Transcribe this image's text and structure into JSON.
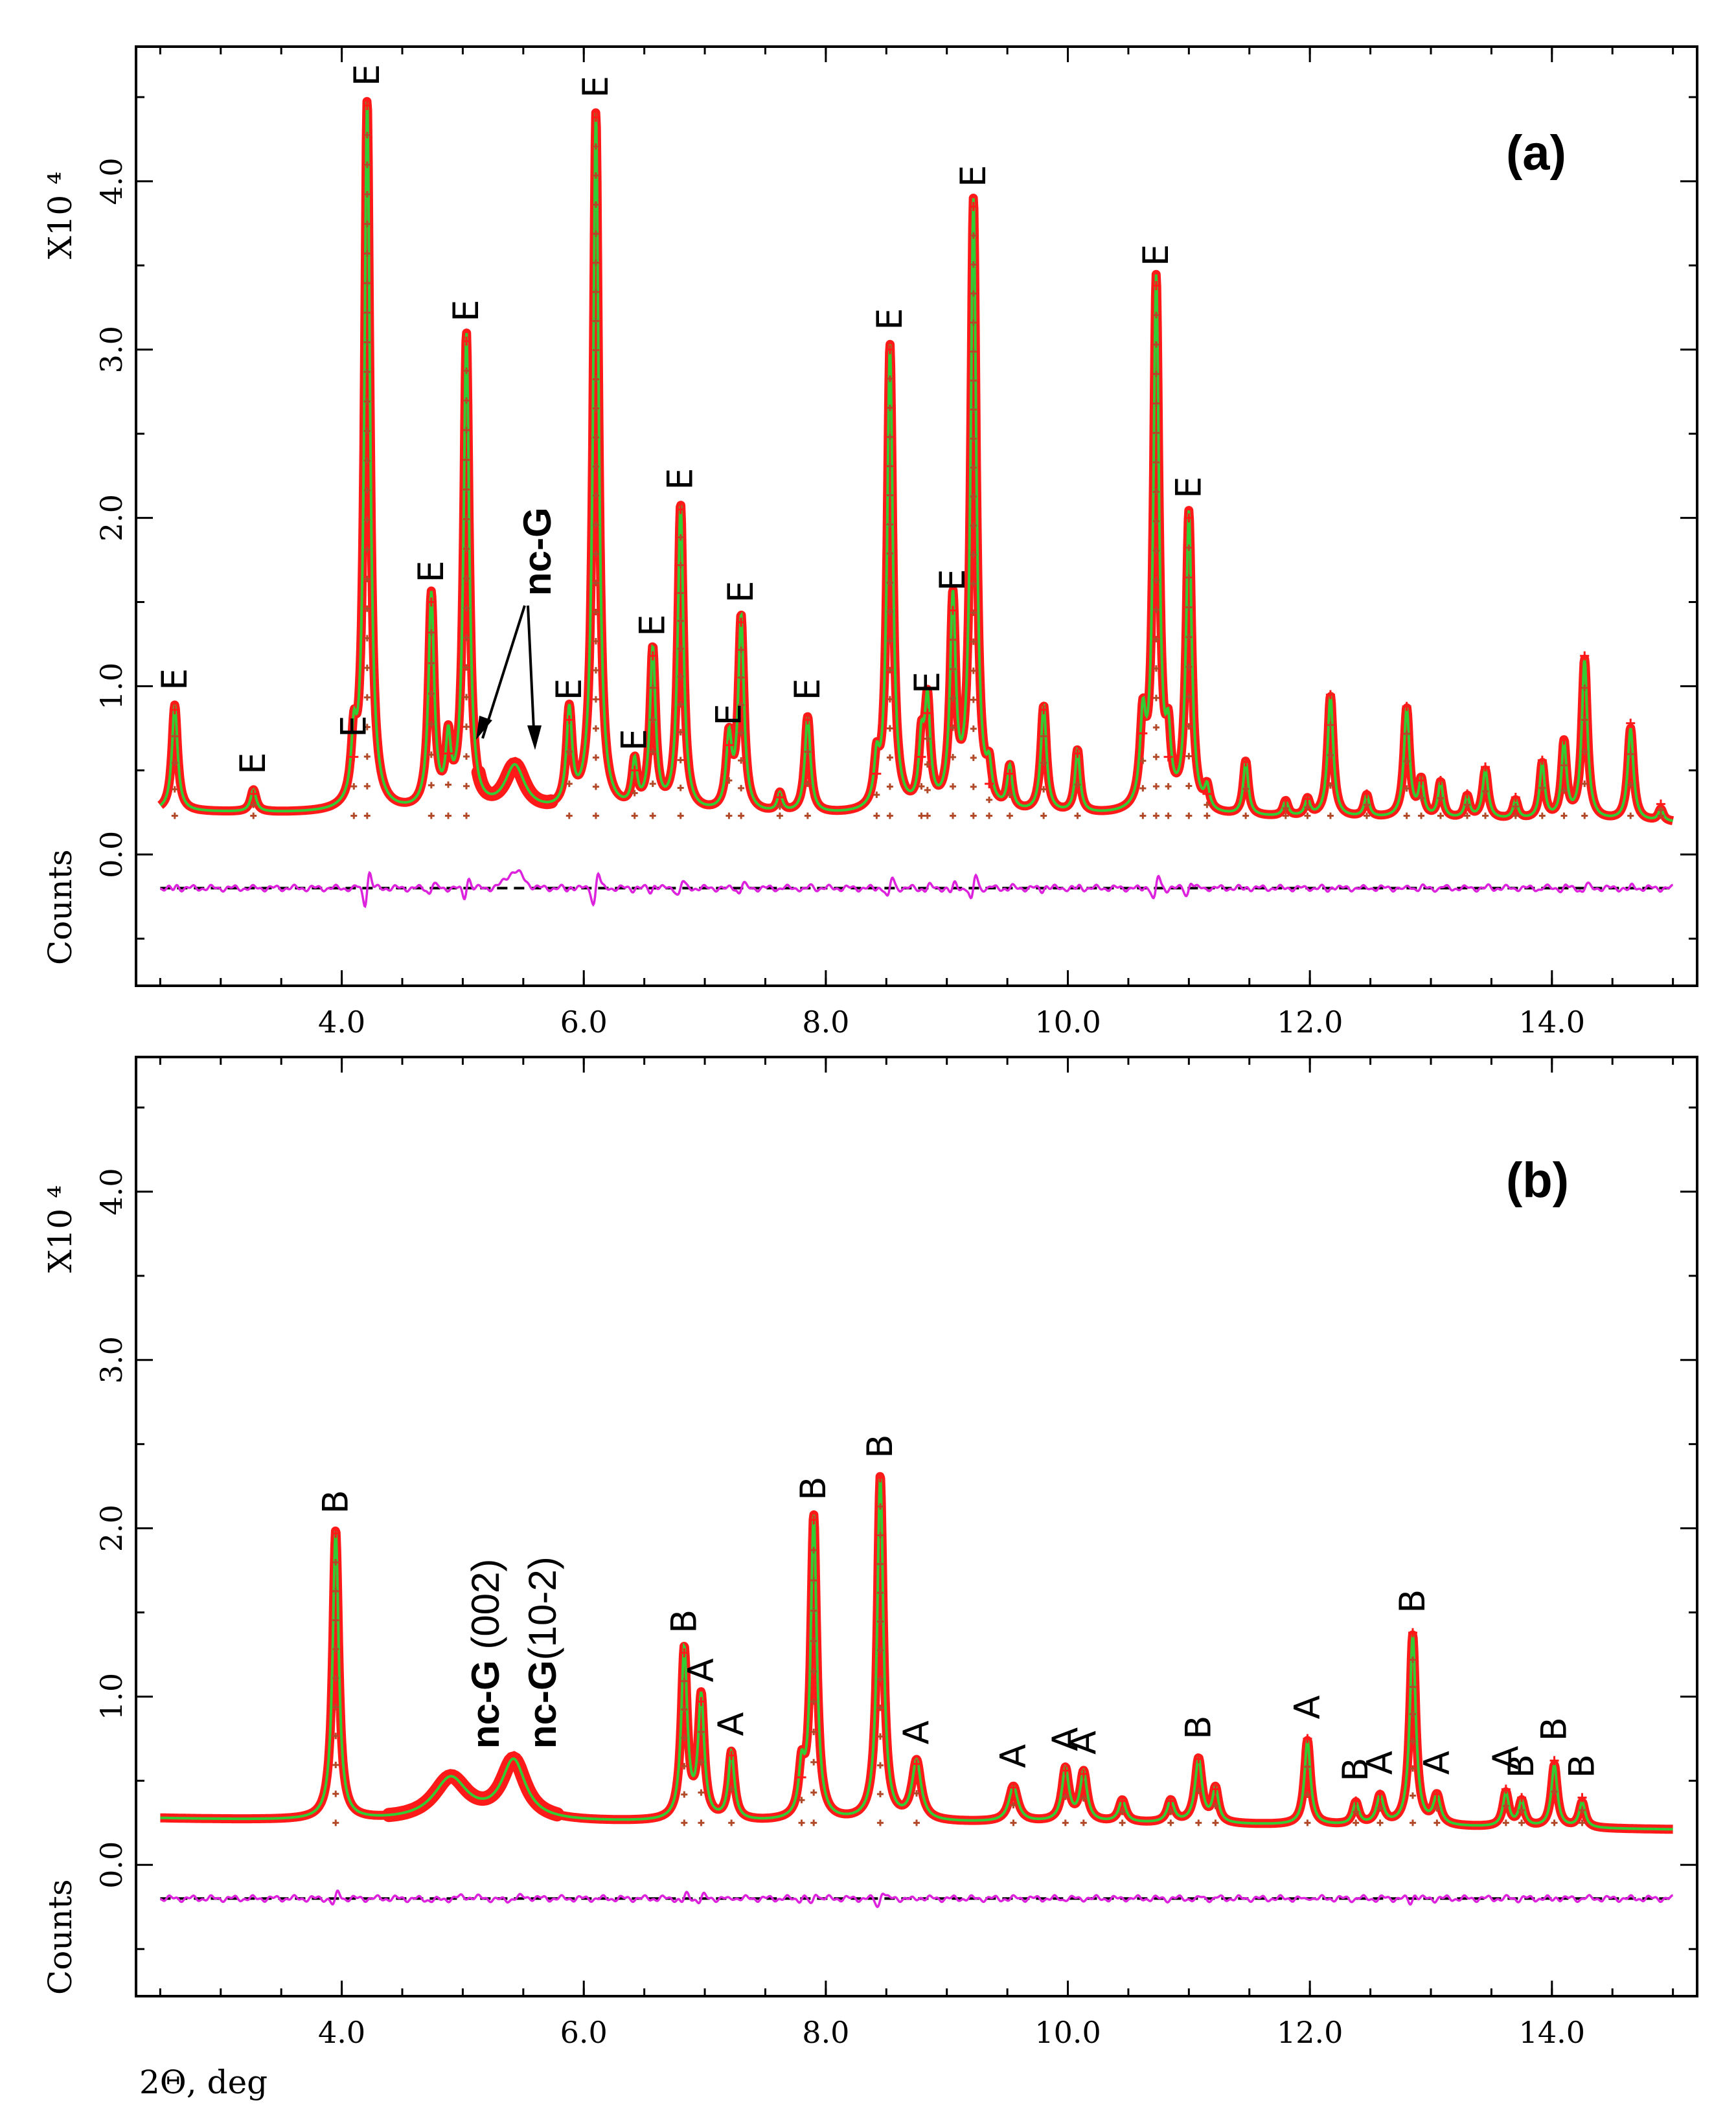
{
  "chart_data": [
    {
      "type": "line",
      "panel_label": "(a)",
      "xlabel": "",
      "ylabel": "Counts",
      "y_multiplier": "X10 ⁴",
      "xlim": [
        2.3,
        15.2
      ],
      "ylim": [
        -0.78,
        4.8
      ],
      "x_ticks": [
        4.0,
        6.0,
        8.0,
        10.0,
        12.0,
        14.0
      ],
      "x_tick_labels": [
        "4.0",
        "6.0",
        "8.0",
        "10.0",
        "12.0",
        "14.0"
      ],
      "y_ticks": [
        0.0,
        1.0,
        2.0,
        3.0,
        4.0
      ],
      "y_tick_labels": [
        "0.0",
        "1.0",
        "2.0",
        "3.0",
        "4.0"
      ],
      "baseline": 0.23,
      "difference_offset": -0.2,
      "series": [
        {
          "name": "observed",
          "color": "#ff1a1a"
        },
        {
          "name": "calculated",
          "color": "#33cc33"
        },
        {
          "name": "difference",
          "color": "#dd22dd"
        }
      ],
      "peaks": [
        {
          "x": 2.62,
          "y": 0.86,
          "w": 0.028,
          "label": "E"
        },
        {
          "x": 3.27,
          "y": 0.36,
          "w": 0.028,
          "label": "E"
        },
        {
          "x": 4.1,
          "y": 0.58,
          "w": 0.025,
          "label": "E"
        },
        {
          "x": 4.21,
          "y": 4.45,
          "w": 0.028,
          "label": "E"
        },
        {
          "x": 4.74,
          "y": 1.5,
          "w": 0.028,
          "label": "E"
        },
        {
          "x": 4.88,
          "y": 0.6,
          "w": 0.025,
          "label": ""
        },
        {
          "x": 5.03,
          "y": 3.05,
          "w": 0.028,
          "label": "E"
        },
        {
          "x": 5.88,
          "y": 0.8,
          "w": 0.028,
          "label": "E"
        },
        {
          "x": 6.1,
          "y": 4.38,
          "w": 0.028,
          "label": "E"
        },
        {
          "x": 6.42,
          "y": 0.5,
          "w": 0.025,
          "label": "E"
        },
        {
          "x": 6.57,
          "y": 1.18,
          "w": 0.028,
          "label": "E"
        },
        {
          "x": 6.8,
          "y": 2.05,
          "w": 0.028,
          "label": "E"
        },
        {
          "x": 7.2,
          "y": 0.65,
          "w": 0.028,
          "label": "E"
        },
        {
          "x": 7.3,
          "y": 1.38,
          "w": 0.028,
          "label": "E"
        },
        {
          "x": 7.62,
          "y": 0.34,
          "w": 0.025,
          "label": ""
        },
        {
          "x": 7.85,
          "y": 0.8,
          "w": 0.028,
          "label": "E"
        },
        {
          "x": 8.42,
          "y": 0.48,
          "w": 0.025,
          "label": ""
        },
        {
          "x": 8.53,
          "y": 3.0,
          "w": 0.028,
          "label": "E"
        },
        {
          "x": 8.79,
          "y": 0.58,
          "w": 0.025,
          "label": ""
        },
        {
          "x": 8.84,
          "y": 0.84,
          "w": 0.028,
          "label": "E"
        },
        {
          "x": 9.05,
          "y": 1.45,
          "w": 0.028,
          "label": "E"
        },
        {
          "x": 9.22,
          "y": 3.85,
          "w": 0.028,
          "label": "E"
        },
        {
          "x": 9.35,
          "y": 0.42,
          "w": 0.025,
          "label": ""
        },
        {
          "x": 9.52,
          "y": 0.48,
          "w": 0.025,
          "label": ""
        },
        {
          "x": 9.8,
          "y": 0.86,
          "w": 0.028,
          "label": ""
        },
        {
          "x": 10.08,
          "y": 0.6,
          "w": 0.025,
          "label": ""
        },
        {
          "x": 10.62,
          "y": 0.72,
          "w": 0.028,
          "label": ""
        },
        {
          "x": 10.73,
          "y": 3.38,
          "w": 0.028,
          "label": "E"
        },
        {
          "x": 10.83,
          "y": 0.58,
          "w": 0.025,
          "label": ""
        },
        {
          "x": 11.0,
          "y": 2.0,
          "w": 0.028,
          "label": "E"
        },
        {
          "x": 11.15,
          "y": 0.36,
          "w": 0.025,
          "label": ""
        },
        {
          "x": 11.47,
          "y": 0.55,
          "w": 0.025,
          "label": ""
        },
        {
          "x": 11.8,
          "y": 0.32,
          "w": 0.025,
          "label": ""
        },
        {
          "x": 11.98,
          "y": 0.33,
          "w": 0.025,
          "label": ""
        },
        {
          "x": 12.17,
          "y": 0.95,
          "w": 0.028,
          "label": ""
        },
        {
          "x": 12.47,
          "y": 0.36,
          "w": 0.025,
          "label": ""
        },
        {
          "x": 12.8,
          "y": 0.88,
          "w": 0.028,
          "label": ""
        },
        {
          "x": 12.92,
          "y": 0.44,
          "w": 0.025,
          "label": ""
        },
        {
          "x": 13.08,
          "y": 0.44,
          "w": 0.025,
          "label": ""
        },
        {
          "x": 13.3,
          "y": 0.36,
          "w": 0.025,
          "label": ""
        },
        {
          "x": 13.45,
          "y": 0.52,
          "w": 0.028,
          "label": ""
        },
        {
          "x": 13.7,
          "y": 0.34,
          "w": 0.025,
          "label": ""
        },
        {
          "x": 13.92,
          "y": 0.56,
          "w": 0.025,
          "label": ""
        },
        {
          "x": 14.1,
          "y": 0.68,
          "w": 0.025,
          "label": ""
        },
        {
          "x": 14.27,
          "y": 1.18,
          "w": 0.028,
          "label": ""
        },
        {
          "x": 14.65,
          "y": 0.78,
          "w": 0.028,
          "label": ""
        },
        {
          "x": 14.9,
          "y": 0.3,
          "w": 0.025,
          "label": ""
        }
      ],
      "broad_features": [
        {
          "x": 5.43,
          "y": 0.5,
          "w": 0.1,
          "label": "nc-G"
        }
      ],
      "annotations": [
        {
          "text": "nc-G",
          "arrow_targets_x": [
            4.95,
            5.43
          ]
        }
      ]
    },
    {
      "type": "line",
      "panel_label": "(b)",
      "xlabel": "2Θ, deg",
      "ylabel": "Counts",
      "y_multiplier": "X10 ⁴",
      "xlim": [
        2.3,
        15.2
      ],
      "ylim": [
        -0.78,
        4.8
      ],
      "x_ticks": [
        4.0,
        6.0,
        8.0,
        10.0,
        12.0,
        14.0
      ],
      "x_tick_labels": [
        "4.0",
        "6.0",
        "8.0",
        "10.0",
        "12.0",
        "14.0"
      ],
      "y_ticks": [
        0.0,
        1.0,
        2.0,
        3.0,
        4.0
      ],
      "y_tick_labels": [
        "0.0",
        "1.0",
        "2.0",
        "3.0",
        "4.0"
      ],
      "baseline": 0.25,
      "difference_offset": -0.2,
      "series": [
        {
          "name": "observed",
          "color": "#ff1a1a"
        },
        {
          "name": "calculated",
          "color": "#33cc33"
        },
        {
          "name": "difference",
          "color": "#dd22dd"
        }
      ],
      "peaks": [
        {
          "x": 3.95,
          "y": 1.97,
          "w": 0.03,
          "label": "B"
        },
        {
          "x": 6.83,
          "y": 1.26,
          "w": 0.03,
          "label": "B"
        },
        {
          "x": 6.97,
          "y": 0.97,
          "w": 0.03,
          "label": "A"
        },
        {
          "x": 7.22,
          "y": 0.65,
          "w": 0.03,
          "label": "A"
        },
        {
          "x": 7.8,
          "y": 0.52,
          "w": 0.028,
          "label": ""
        },
        {
          "x": 7.9,
          "y": 2.05,
          "w": 0.03,
          "label": "B"
        },
        {
          "x": 8.45,
          "y": 2.3,
          "w": 0.03,
          "label": "B"
        },
        {
          "x": 8.75,
          "y": 0.6,
          "w": 0.045,
          "label": "A"
        },
        {
          "x": 9.55,
          "y": 0.46,
          "w": 0.045,
          "label": "A"
        },
        {
          "x": 9.98,
          "y": 0.56,
          "w": 0.035,
          "label": "A"
        },
        {
          "x": 10.13,
          "y": 0.54,
          "w": 0.035,
          "label": "A"
        },
        {
          "x": 10.45,
          "y": 0.38,
          "w": 0.035,
          "label": ""
        },
        {
          "x": 10.85,
          "y": 0.38,
          "w": 0.035,
          "label": ""
        },
        {
          "x": 11.08,
          "y": 0.63,
          "w": 0.035,
          "label": "B"
        },
        {
          "x": 11.22,
          "y": 0.45,
          "w": 0.03,
          "label": ""
        },
        {
          "x": 11.98,
          "y": 0.75,
          "w": 0.03,
          "label": "A"
        },
        {
          "x": 12.38,
          "y": 0.38,
          "w": 0.03,
          "label": "B"
        },
        {
          "x": 12.58,
          "y": 0.42,
          "w": 0.035,
          "label": "A"
        },
        {
          "x": 12.85,
          "y": 1.38,
          "w": 0.03,
          "label": "B"
        },
        {
          "x": 13.05,
          "y": 0.42,
          "w": 0.035,
          "label": "A"
        },
        {
          "x": 13.62,
          "y": 0.45,
          "w": 0.03,
          "label": "A"
        },
        {
          "x": 13.75,
          "y": 0.4,
          "w": 0.03,
          "label": "B"
        },
        {
          "x": 14.02,
          "y": 0.62,
          "w": 0.03,
          "label": "B"
        },
        {
          "x": 14.25,
          "y": 0.4,
          "w": 0.03,
          "label": "B"
        }
      ],
      "broad_features": [
        {
          "x": 4.9,
          "y": 0.5,
          "w": 0.17,
          "label": "nc-G (002)"
        },
        {
          "x": 5.42,
          "y": 0.6,
          "w": 0.12,
          "label": "nc-G(10-2)"
        }
      ],
      "annotations": []
    }
  ]
}
